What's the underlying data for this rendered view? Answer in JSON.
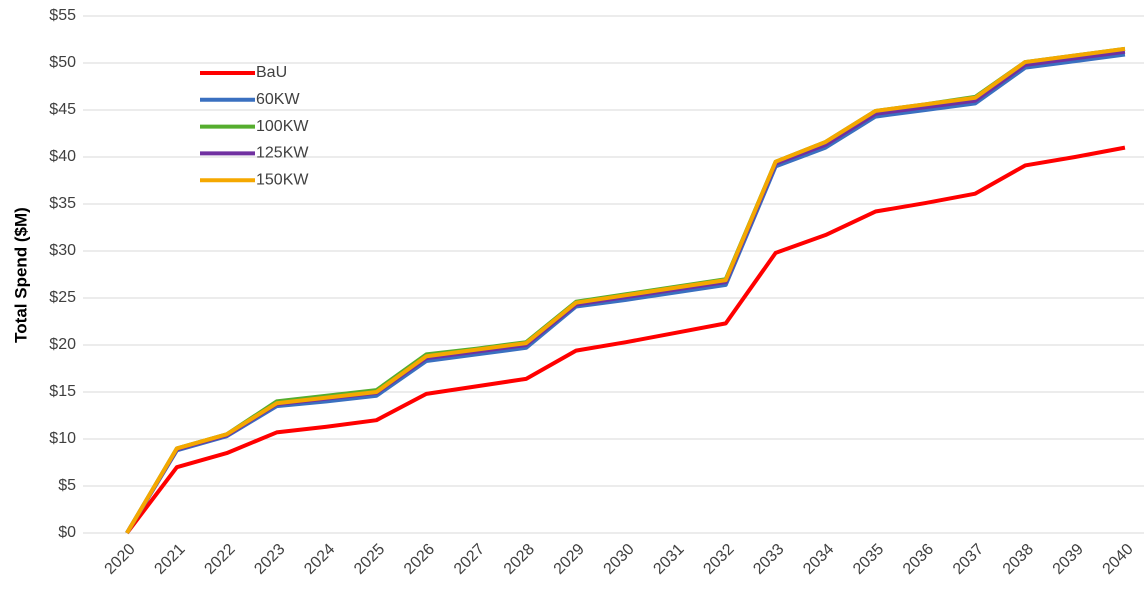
{
  "chart_data": {
    "type": "line",
    "y_label": "Total Spend ($M)",
    "categories": [
      "2020",
      "2021",
      "2022",
      "2023",
      "2024",
      "2025",
      "2026",
      "2027",
      "2028",
      "2029",
      "2030",
      "2031",
      "2032",
      "2033",
      "2034",
      "2035",
      "2036",
      "2037",
      "2038",
      "2039",
      "2040"
    ],
    "series": [
      {
        "name": "BaU",
        "color": "#ff0000",
        "values": [
          0,
          7.0,
          8.5,
          10.7,
          11.3,
          12.0,
          14.8,
          15.6,
          16.4,
          19.4,
          20.3,
          21.3,
          22.3,
          29.8,
          31.7,
          34.2,
          35.1,
          36.1,
          39.1,
          40.0,
          41.0
        ]
      },
      {
        "name": "60KW",
        "color": "#3a70c0",
        "values": [
          0,
          8.8,
          10.3,
          13.5,
          14.0,
          14.6,
          18.3,
          19.0,
          19.7,
          24.1,
          24.8,
          25.6,
          26.4,
          39.0,
          41.0,
          44.3,
          45.0,
          45.7,
          49.5,
          50.2,
          50.9
        ]
      },
      {
        "name": "100KW",
        "color": "#55ad2e",
        "values": [
          0,
          9.0,
          10.5,
          14.0,
          14.6,
          15.2,
          19.0,
          19.6,
          20.3,
          24.6,
          25.4,
          26.2,
          27.0,
          39.5,
          41.6,
          44.9,
          45.6,
          46.4,
          50.1,
          50.8,
          51.5
        ]
      },
      {
        "name": "125KW",
        "color": "#7030a0",
        "values": [
          0,
          8.9,
          10.4,
          13.7,
          14.3,
          14.9,
          18.6,
          19.3,
          20.0,
          24.3,
          25.1,
          25.9,
          26.7,
          39.3,
          41.3,
          44.6,
          45.3,
          46.0,
          49.8,
          50.5,
          51.2
        ]
      },
      {
        "name": "150KW",
        "color": "#f5a800",
        "values": [
          0,
          9.0,
          10.5,
          13.8,
          14.4,
          15.0,
          18.8,
          19.5,
          20.2,
          24.5,
          25.3,
          26.1,
          26.9,
          39.5,
          41.6,
          44.9,
          45.6,
          46.3,
          50.1,
          50.8,
          51.5
        ]
      }
    ],
    "ylim": [
      0,
      55
    ],
    "yticks": [
      {
        "value": 0,
        "label": "$0"
      },
      {
        "value": 5,
        "label": "$5"
      },
      {
        "value": 10,
        "label": "$10"
      },
      {
        "value": 15,
        "label": "$15"
      },
      {
        "value": 20,
        "label": "$20"
      },
      {
        "value": 25,
        "label": "$25"
      },
      {
        "value": 30,
        "label": "$30"
      },
      {
        "value": 35,
        "label": "$35"
      },
      {
        "value": 40,
        "label": "$40"
      },
      {
        "value": 45,
        "label": "$45"
      },
      {
        "value": 50,
        "label": "$50"
      },
      {
        "value": 55,
        "label": "$55"
      }
    ],
    "grid": true,
    "legend": "upper left"
  }
}
